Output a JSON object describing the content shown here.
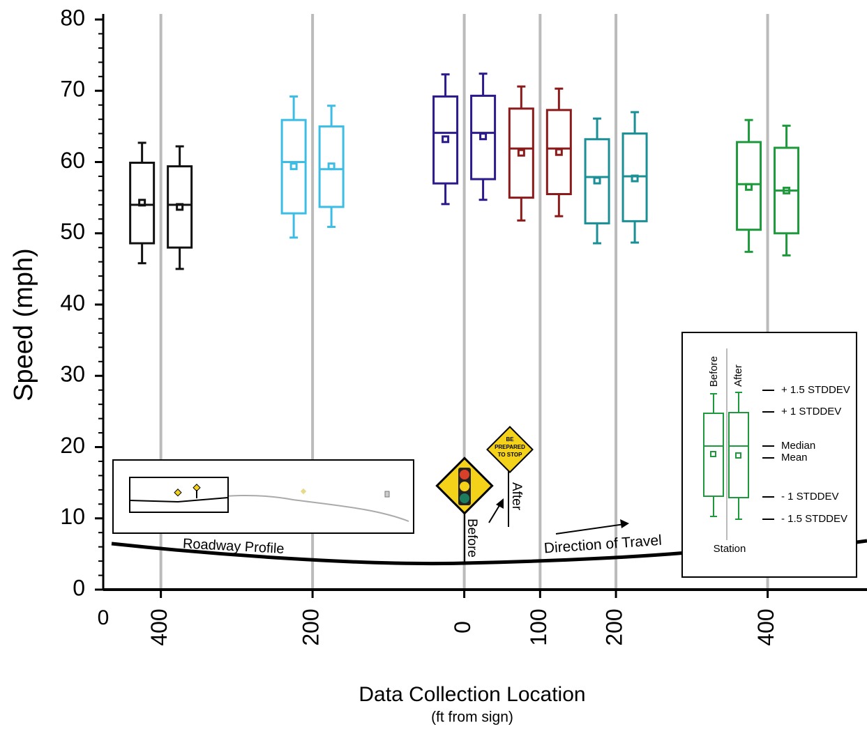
{
  "chart_data": {
    "type": "box",
    "ylabel": "Speed (mph)",
    "xlabel": "Data Collection Location",
    "xlabel_sub": "(ft from sign)",
    "x_origin_label": "0",
    "ylim": [
      0,
      80
    ],
    "yticks": [
      0,
      10,
      20,
      30,
      40,
      50,
      60,
      70,
      80
    ],
    "xlim": [
      -476,
      531
    ],
    "xticks": [
      {
        "value": -400,
        "label": "400"
      },
      {
        "value": -200,
        "label": "200"
      },
      0,
      100,
      200,
      400
    ],
    "grid": true,
    "groups": [
      {
        "station": -400,
        "color": "#111111",
        "before": {
          "whisker_low": 45.8,
          "q1": 48.6,
          "median": 54.0,
          "mean": 54.3,
          "q3": 59.9,
          "whisker_high": 62.7
        },
        "after": {
          "whisker_low": 45.0,
          "q1": 48.0,
          "median": 54.0,
          "mean": 53.7,
          "q3": 59.4,
          "whisker_high": 62.2
        }
      },
      {
        "station": -200,
        "color": "#3bbde6",
        "before": {
          "whisker_low": 49.4,
          "q1": 52.8,
          "median": 60.0,
          "mean": 59.4,
          "q3": 65.9,
          "whisker_high": 69.2
        },
        "after": {
          "whisker_low": 50.9,
          "q1": 53.7,
          "median": 59.0,
          "mean": 59.4,
          "q3": 65.0,
          "whisker_high": 67.9
        }
      },
      {
        "station": 0,
        "color": "#2a1a8c",
        "before": {
          "whisker_low": 54.1,
          "q1": 57.0,
          "median": 64.1,
          "mean": 63.2,
          "q3": 69.2,
          "whisker_high": 72.3
        },
        "after": {
          "whisker_low": 54.7,
          "q1": 57.6,
          "median": 64.1,
          "mean": 63.6,
          "q3": 69.3,
          "whisker_high": 72.4
        }
      },
      {
        "station": 100,
        "color": "#8b1a1a",
        "before": {
          "whisker_low": 51.8,
          "q1": 55.0,
          "median": 61.9,
          "mean": 61.3,
          "q3": 67.5,
          "whisker_high": 70.6
        },
        "after": {
          "whisker_low": 52.4,
          "q1": 55.5,
          "median": 61.9,
          "mean": 61.4,
          "q3": 67.3,
          "whisker_high": 70.3
        }
      },
      {
        "station": 200,
        "color": "#1a8f96",
        "before": {
          "whisker_low": 48.6,
          "q1": 51.4,
          "median": 57.9,
          "mean": 57.4,
          "q3": 63.2,
          "whisker_high": 66.1
        },
        "after": {
          "whisker_low": 48.7,
          "q1": 51.7,
          "median": 58.0,
          "mean": 57.7,
          "q3": 64.0,
          "whisker_high": 67.0
        }
      },
      {
        "station": 400,
        "color": "#1e9a3c",
        "before": {
          "whisker_low": 47.4,
          "q1": 50.5,
          "median": 56.9,
          "mean": 56.5,
          "q3": 62.8,
          "whisker_high": 65.9
        },
        "after": {
          "whisker_low": 46.9,
          "q1": 50.0,
          "median": 56.0,
          "mean": 56.0,
          "q3": 62.0,
          "whisker_high": 65.1
        }
      }
    ],
    "annotations": {
      "roadway_profile": "Roadway Profile",
      "direction_of_travel": "Direction of Travel",
      "before": "Before",
      "after": "After",
      "sign_text": [
        "BE",
        "PREPARED",
        "TO STOP"
      ]
    },
    "legend": {
      "before": "Before",
      "after": "After",
      "station": "Station",
      "labels": [
        "+ 1.5 STDDEV",
        "+ 1 STDDEV",
        "Median",
        "Mean",
        "- 1 STDDEV",
        "- 1.5 STDDEV"
      ]
    }
  }
}
